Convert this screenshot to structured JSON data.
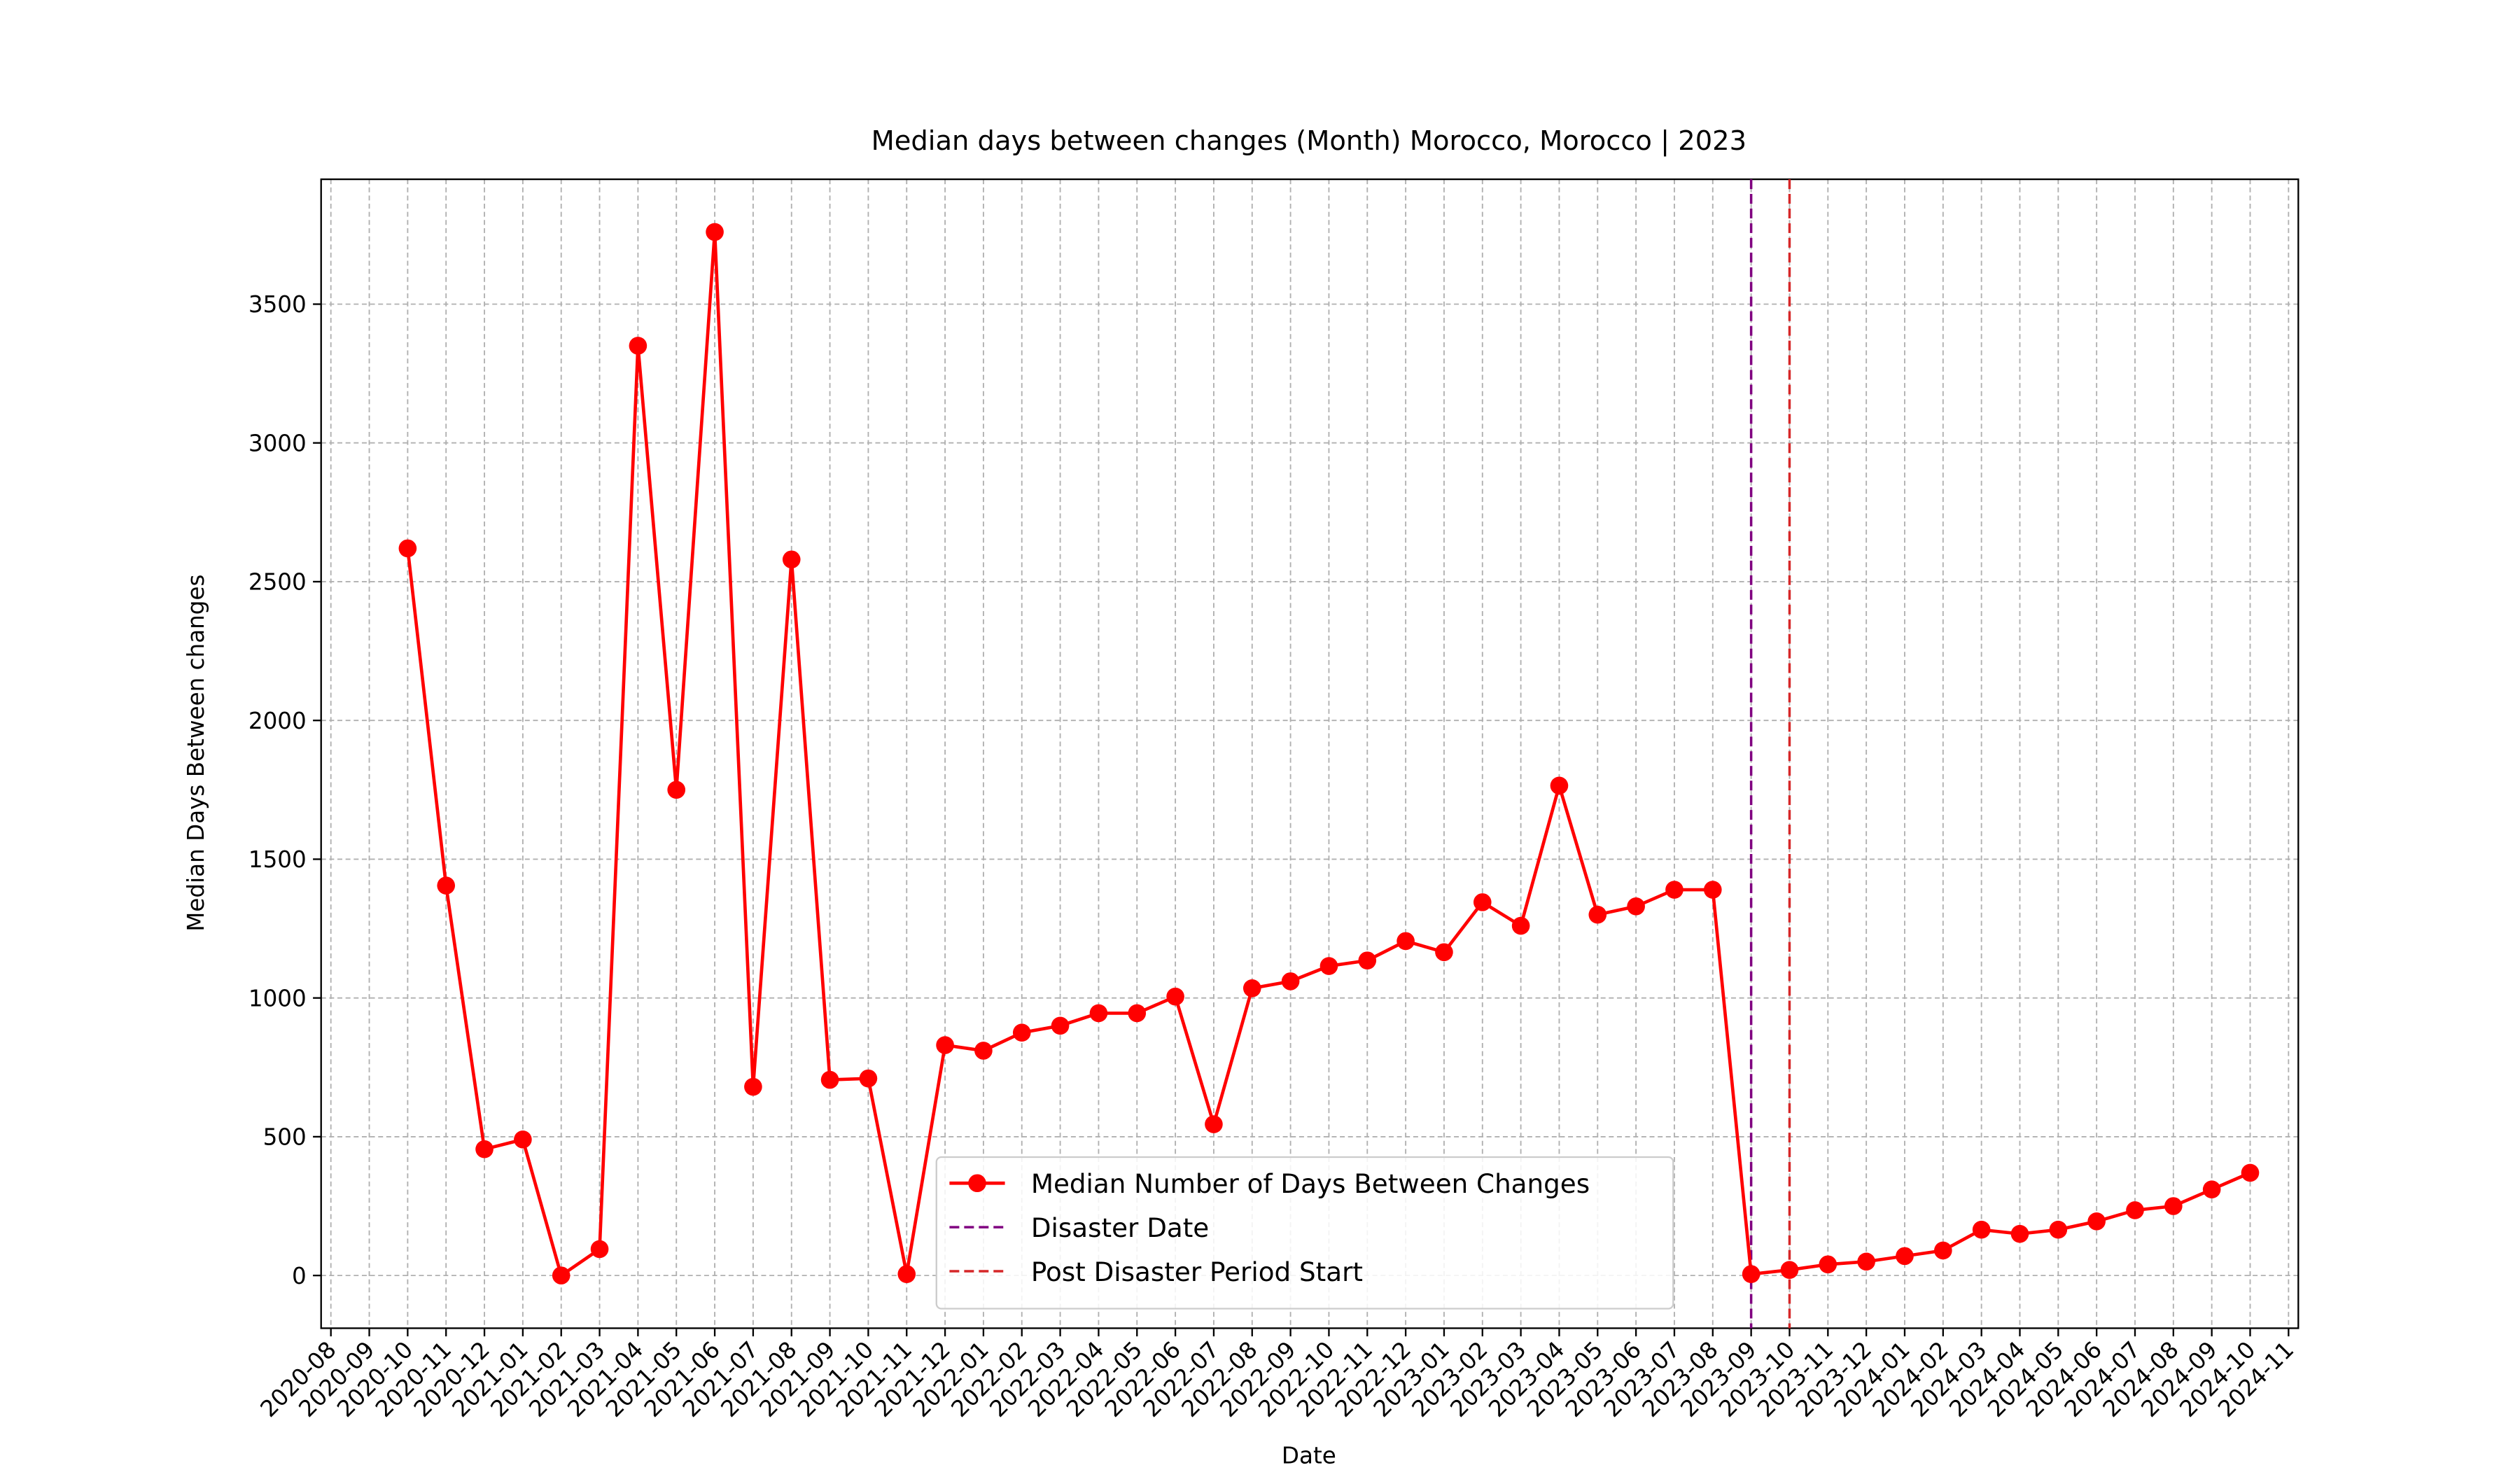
{
  "chart_data": {
    "type": "line",
    "title": "Median days between changes (Month) Morocco, Morocco | 2023",
    "xlabel": "Date",
    "ylabel": "Median Days Between changes",
    "x": [
      "2020-10",
      "2020-11",
      "2020-12",
      "2021-01",
      "2021-02",
      "2021-03",
      "2021-04",
      "2021-05",
      "2021-06",
      "2021-07",
      "2021-08",
      "2021-09",
      "2021-10",
      "2021-11",
      "2021-12",
      "2022-01",
      "2022-02",
      "2022-03",
      "2022-04",
      "2022-05",
      "2022-06",
      "2022-07",
      "2022-08",
      "2022-09",
      "2022-10",
      "2022-11",
      "2022-12",
      "2023-01",
      "2023-02",
      "2023-03",
      "2023-04",
      "2023-05",
      "2023-06",
      "2023-07",
      "2023-08",
      "2023-09",
      "2023-10",
      "2023-11",
      "2023-12",
      "2024-01",
      "2024-02",
      "2024-03",
      "2024-04",
      "2024-05",
      "2024-06",
      "2024-07",
      "2024-08",
      "2024-09",
      "2024-10"
    ],
    "series": [
      {
        "name": "Median Number of Days Between Changes",
        "color": "#ff0000",
        "values": [
          2620,
          1405,
          455,
          490,
          0,
          95,
          3350,
          1750,
          3760,
          680,
          2580,
          705,
          710,
          5,
          830,
          810,
          875,
          900,
          945,
          945,
          1005,
          545,
          1035,
          1060,
          1115,
          1135,
          1205,
          1165,
          1345,
          1260,
          1765,
          1300,
          1330,
          1390,
          1390,
          5,
          20,
          40,
          50,
          70,
          90,
          165,
          150,
          165,
          195,
          235,
          250,
          310,
          370
        ]
      }
    ],
    "vlines": [
      {
        "name": "Disaster Date",
        "x": "2023-09",
        "color": "#800080"
      },
      {
        "name": "Post Disaster Period Start",
        "x": "2023-10",
        "color": "#d62728"
      }
    ],
    "xlim": [
      "2020-08",
      "2024-11"
    ],
    "xticks": [
      "2020-08",
      "2020-09",
      "2020-10",
      "2020-11",
      "2020-12",
      "2021-01",
      "2021-02",
      "2021-03",
      "2021-04",
      "2021-05",
      "2021-06",
      "2021-07",
      "2021-08",
      "2021-09",
      "2021-10",
      "2021-11",
      "2021-12",
      "2022-01",
      "2022-02",
      "2022-03",
      "2022-04",
      "2022-05",
      "2022-06",
      "2022-07",
      "2022-08",
      "2022-09",
      "2022-10",
      "2022-11",
      "2022-12",
      "2023-01",
      "2023-02",
      "2023-03",
      "2023-04",
      "2023-05",
      "2023-06",
      "2023-07",
      "2023-08",
      "2023-09",
      "2023-10",
      "2023-11",
      "2023-12",
      "2024-01",
      "2024-02",
      "2024-03",
      "2024-04",
      "2024-05",
      "2024-06",
      "2024-07",
      "2024-08",
      "2024-09",
      "2024-10",
      "2024-11"
    ],
    "ylim": [
      -190,
      3950
    ],
    "yticks": [
      0,
      500,
      1000,
      1500,
      2000,
      2500,
      3000,
      3500
    ],
    "grid": true,
    "legend": "lower center"
  }
}
